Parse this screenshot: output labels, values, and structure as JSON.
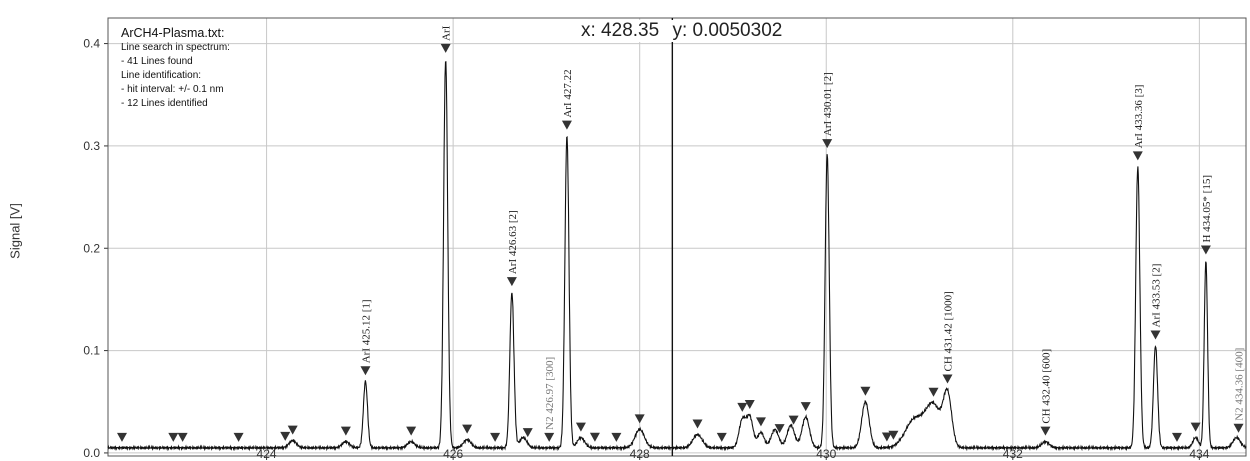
{
  "chart_data": {
    "type": "line",
    "ylabel": "Signal [V]",
    "xlabel": "",
    "xlim": [
      422.3,
      434.5
    ],
    "ylim": [
      -0.003,
      0.425
    ],
    "x_ticks": [
      424,
      426,
      428,
      430,
      432,
      434
    ],
    "y_ticks": [
      0.0,
      0.1,
      0.2,
      0.3,
      0.4
    ],
    "y_tick_labels": [
      "0.0",
      "0.1",
      "0.2",
      "0.3",
      "0.4"
    ],
    "grid": true,
    "cursor": {
      "x": 428.35,
      "label_x": "x: 428.35",
      "label_y": "y: 0.0050302"
    },
    "info": {
      "title": "ArCH4-Plasma.txt:",
      "lines": [
        "Line search in spectrum:",
        "- 41 Lines found",
        "Line identification:",
        "- hit interval: +/- 0.1 nm",
        "- 12 Lines identified"
      ]
    },
    "baseline": 0.005,
    "peaks": [
      {
        "x": 425.06,
        "y": 0.065,
        "w": 0.022
      },
      {
        "x": 425.92,
        "y": 0.38,
        "w": 0.022
      },
      {
        "x": 426.63,
        "y": 0.152,
        "w": 0.022
      },
      {
        "x": 427.22,
        "y": 0.305,
        "w": 0.022
      },
      {
        "x": 430.01,
        "y": 0.287,
        "w": 0.022
      },
      {
        "x": 433.34,
        "y": 0.275,
        "w": 0.022
      },
      {
        "x": 433.53,
        "y": 0.1,
        "w": 0.022
      },
      {
        "x": 434.07,
        "y": 0.183,
        "w": 0.018
      },
      {
        "x": 430.42,
        "y": 0.045,
        "w": 0.04
      },
      {
        "x": 431.3,
        "y": 0.05,
        "w": 0.045
      },
      {
        "x": 431.15,
        "y": 0.04,
        "w": 0.08
      },
      {
        "x": 430.95,
        "y": 0.028,
        "w": 0.1
      },
      {
        "x": 429.78,
        "y": 0.03,
        "w": 0.04
      },
      {
        "x": 429.62,
        "y": 0.022,
        "w": 0.04
      },
      {
        "x": 429.45,
        "y": 0.018,
        "w": 0.04
      },
      {
        "x": 429.1,
        "y": 0.027,
        "w": 0.035
      },
      {
        "x": 429.18,
        "y": 0.03,
        "w": 0.035
      },
      {
        "x": 429.3,
        "y": 0.015,
        "w": 0.035
      },
      {
        "x": 428.62,
        "y": 0.013,
        "w": 0.05
      },
      {
        "x": 428.0,
        "y": 0.018,
        "w": 0.05
      },
      {
        "x": 427.37,
        "y": 0.01,
        "w": 0.04
      },
      {
        "x": 426.75,
        "y": 0.01,
        "w": 0.04
      },
      {
        "x": 426.15,
        "y": 0.008,
        "w": 0.04
      },
      {
        "x": 425.55,
        "y": 0.006,
        "w": 0.04
      },
      {
        "x": 424.85,
        "y": 0.006,
        "w": 0.04
      },
      {
        "x": 424.28,
        "y": 0.007,
        "w": 0.04
      },
      {
        "x": 433.96,
        "y": 0.01,
        "w": 0.03
      },
      {
        "x": 434.4,
        "y": 0.01,
        "w": 0.04
      },
      {
        "x": 432.35,
        "y": 0.006,
        "w": 0.04
      }
    ],
    "markers": [
      422.45,
      423.0,
      423.1,
      423.7,
      424.2,
      424.28,
      424.85,
      425.06,
      425.55,
      425.92,
      426.15,
      426.45,
      426.63,
      426.8,
      427.03,
      427.22,
      427.37,
      427.52,
      427.75,
      428.0,
      428.62,
      428.88,
      429.1,
      429.18,
      429.3,
      429.5,
      429.65,
      429.78,
      430.01,
      430.42,
      430.65,
      430.72,
      431.15,
      431.3,
      432.35,
      433.34,
      433.53,
      433.76,
      433.96,
      434.07,
      434.42
    ],
    "labels": [
      {
        "x": 425.06,
        "text": "ArI  425.12 [1]",
        "color": "#222"
      },
      {
        "x": 425.92,
        "text": "ArI",
        "color": "#222"
      },
      {
        "x": 426.63,
        "text": "ArI  426.63 [2]",
        "color": "#222"
      },
      {
        "x": 427.03,
        "text": "N2  426.97 [300]",
        "color": "#777"
      },
      {
        "x": 427.22,
        "text": "ArI  427.22",
        "color": "#222"
      },
      {
        "x": 430.01,
        "text": "ArI  430.01 [2]",
        "color": "#222"
      },
      {
        "x": 431.3,
        "text": "CH  431.42 [1000]",
        "color": "#222"
      },
      {
        "x": 432.35,
        "text": "CH  432.40 [600]",
        "color": "#222"
      },
      {
        "x": 433.34,
        "text": "ArI  433.36 [3]",
        "color": "#222"
      },
      {
        "x": 433.53,
        "text": "ArI  433.53 [2]",
        "color": "#222"
      },
      {
        "x": 434.07,
        "text": "H  434.05* [15]",
        "color": "#222"
      },
      {
        "x": 434.42,
        "text": "N2  434.36 [400]",
        "color": "#777"
      }
    ]
  }
}
